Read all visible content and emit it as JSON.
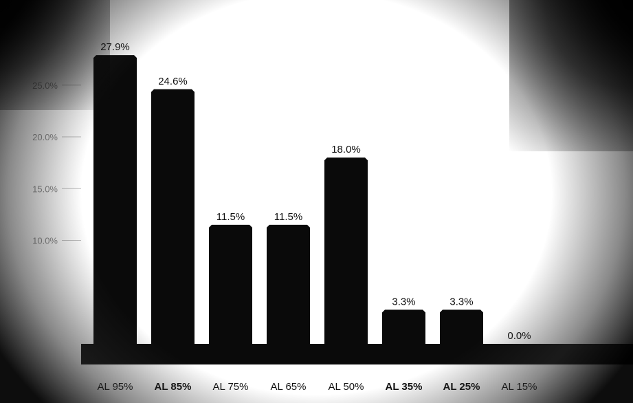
{
  "chart_data": {
    "type": "bar",
    "categories": [
      "AL 95%",
      "AL 85%",
      "AL 75%",
      "AL 65%",
      "AL 50%",
      "AL 35%",
      "AL 25%",
      "AL 15%"
    ],
    "values": [
      27.9,
      24.6,
      11.5,
      11.5,
      18.0,
      3.3,
      3.3,
      0.0
    ],
    "data_labels": [
      "27.9%",
      "24.6%",
      "11.5%",
      "11.5%",
      "18.0%",
      "3.3%",
      "3.3%",
      "0.0%"
    ],
    "y_ticks": [
      "10.0%",
      "15.0%",
      "20.0%",
      "25.0%"
    ],
    "ylim": [
      0,
      30
    ],
    "bar_color": "#0a0a0a",
    "background_color": "#ffffff",
    "grid": false,
    "legend": "none"
  }
}
